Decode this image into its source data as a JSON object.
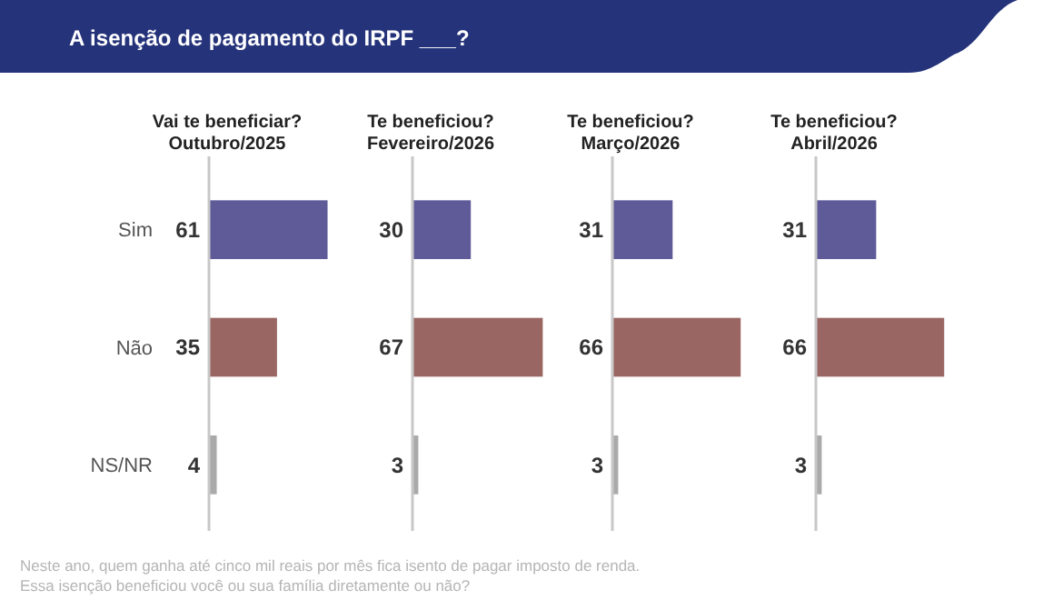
{
  "chart_data": [
    {
      "type": "bar",
      "orientation": "horizontal",
      "title": "Vai te beneficiar?",
      "subtitle": "Outubro/2025",
      "categories": [
        "Sim",
        "Não",
        "NS/NR"
      ],
      "values": [
        61,
        35,
        4
      ],
      "colors": [
        "#5f5b99",
        "#9a6663",
        "#aaaaaa"
      ],
      "data_labels": true,
      "annotations": [
        "A isenção de pagamento do IRPF ___?",
        "Neste ano, quem ganha até cinco mil reais por mês fica isento de pagar imposto de renda.",
        "Essa isenção beneficiou você ou sua família diretamente ou não?"
      ]
    },
    {
      "type": "bar",
      "orientation": "horizontal",
      "title": "Te beneficiou?",
      "subtitle": "Fevereiro/2026",
      "categories": [
        null,
        null,
        null
      ],
      "values": [
        30,
        67,
        3
      ],
      "colors": [
        "#5f5b99",
        "#9a6663",
        "#aaaaaa"
      ],
      "data_labels": true
    },
    {
      "type": "bar",
      "orientation": "horizontal",
      "title": "Te beneficiou?",
      "subtitle": "Março/2026",
      "categories": [
        null,
        null,
        null
      ],
      "values": [
        31,
        66,
        3
      ],
      "colors": [
        "#5f5b99",
        "#9a6663",
        "#aaaaaa"
      ],
      "data_labels": true
    },
    {
      "type": "bar",
      "orientation": "horizontal",
      "title": "Te beneficiou?",
      "subtitle": "Abril/2026",
      "categories": [
        null,
        null,
        null
      ],
      "values": [
        31,
        66,
        3
      ],
      "colors": [
        "#5f5b99",
        "#9a6663",
        "#aaaaaa"
      ],
      "data_labels": true
    }
  ]
}
